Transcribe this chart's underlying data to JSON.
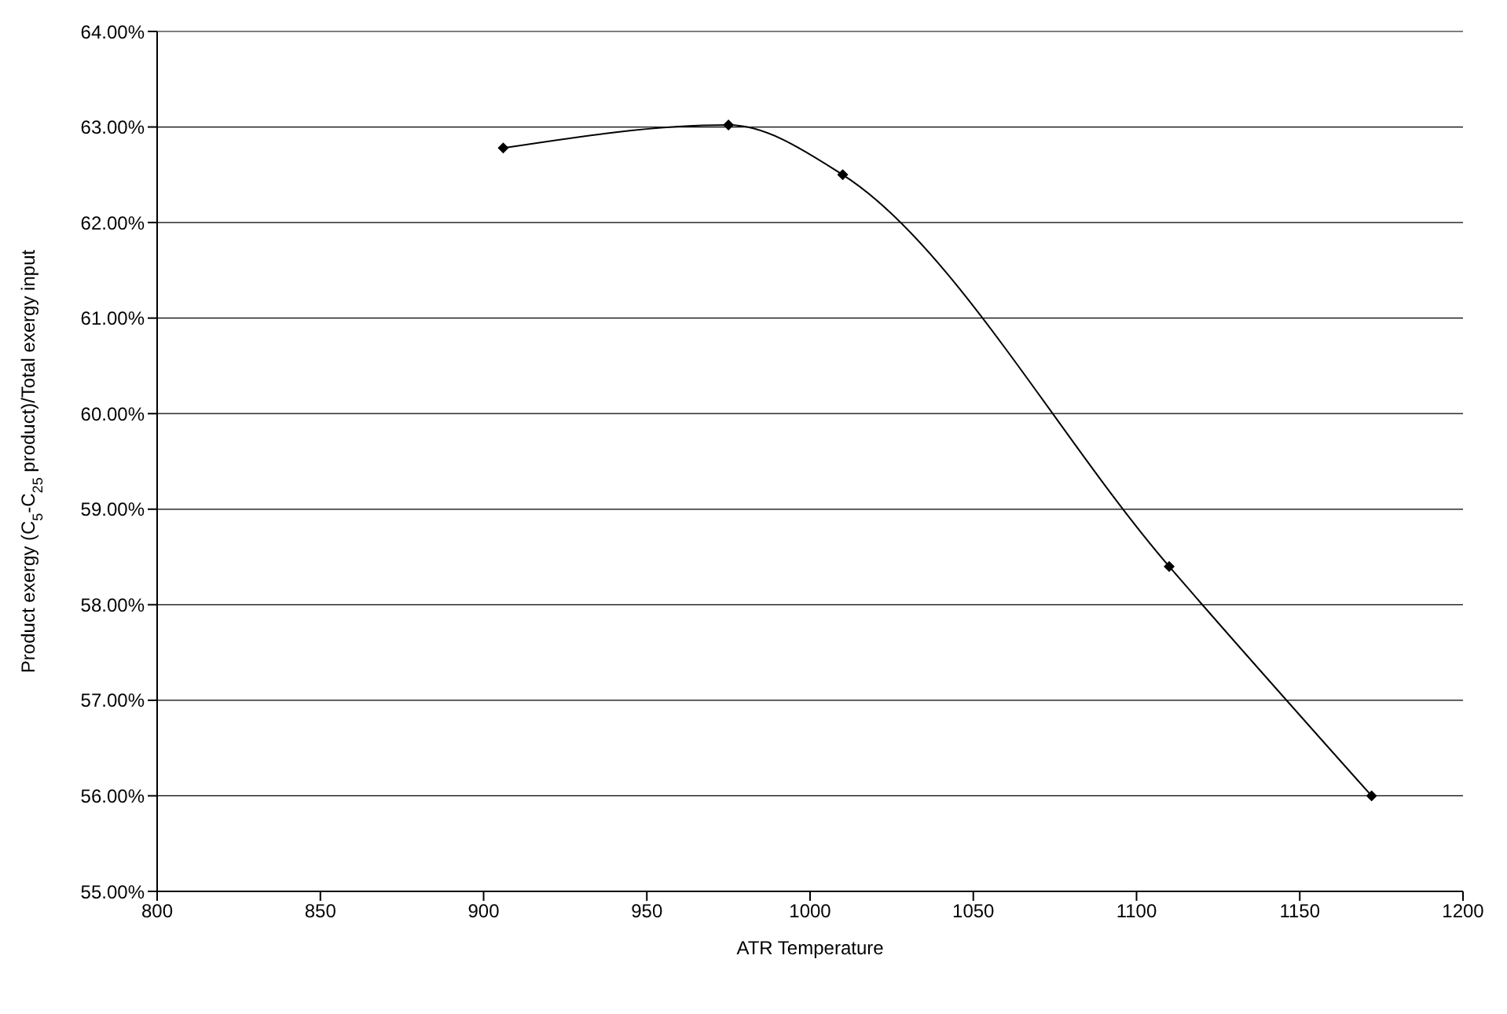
{
  "chart_data": {
    "type": "line",
    "xlabel": "ATR Temperature",
    "ylabel": "Product exergy (C$_{5}$-C$_{25}$ product)/Total exergy input",
    "x": [
      906,
      975,
      1010,
      1110,
      1172
    ],
    "series": [
      {
        "color": "#000000",
        "values": [
          62.78,
          63.02,
          62.5,
          58.4,
          56.0
        ]
      }
    ],
    "xlim": [
      800,
      1200
    ],
    "xticks": [
      800,
      850,
      900,
      950,
      1000,
      1050,
      1100,
      1150,
      1200
    ],
    "ylim": [
      55,
      64
    ],
    "yticks": [
      {
        "value": 55,
        "label": "55.00%"
      },
      {
        "value": 56,
        "label": "56.00%"
      },
      {
        "value": 57,
        "label": "57.00%"
      },
      {
        "value": 58,
        "label": "58.00%"
      },
      {
        "value": 59,
        "label": "59.00%"
      },
      {
        "value": 60,
        "label": "60.00%"
      },
      {
        "value": 61,
        "label": "61.00%"
      },
      {
        "value": 62,
        "label": "62.00%"
      },
      {
        "value": 63,
        "label": "63.00%"
      },
      {
        "value": 64,
        "label": "64.00%"
      }
    ],
    "grid": "y",
    "marker": "diamond",
    "line_style": "solid",
    "legend": false
  }
}
